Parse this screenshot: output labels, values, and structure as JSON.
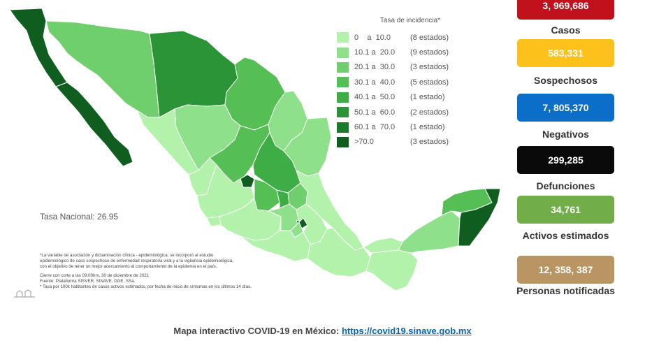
{
  "legend": {
    "title": "Tasa de incidencia*",
    "rows": [
      {
        "range": "0    a  10.0",
        "count": "(8 estados)",
        "color": "#b2f2ab"
      },
      {
        "range": "10.1 a  20.0",
        "count": "(9 estados)",
        "color": "#8fe08a"
      },
      {
        "range": "20.1 a  30.0",
        "count": "(3 estados)",
        "color": "#6fcf6d"
      },
      {
        "range": "30.1 a  40.0",
        "count": "(5 estados)",
        "color": "#55bf56"
      },
      {
        "range": "40.1 a  50.0",
        "count": "(1 estado)",
        "color": "#3fad45"
      },
      {
        "range": "50.1 a  60.0",
        "count": "(2 estados)",
        "color": "#2b9436"
      },
      {
        "range": "60.1 a  70.0",
        "count": "(1 estado)",
        "color": "#1a7a2a"
      },
      {
        "range": ">70.0",
        "count": "(3 estados)",
        "color": "#0f5e1f"
      }
    ]
  },
  "tasa_nacional": "Tasa Nacional: 26.95",
  "footnotes": {
    "lines": [
      "*La variable de asociación y dictaminación clínica - epidemiológica, se incorporó al estudio",
      "epidemiológico de caso sospechoso de enfermedad respiratoria viral y a la vigilancia epidemiológica,",
      "con el objetivo de tener un mejor acercamiento al comportamiento de la epidemia en el país."
    ],
    "cierre": [
      "Cierre con corte a las 09:00hrs, 30 de diciembre de 2021",
      "Fuente: Plataforma SISVER, SINAVE, DGE, SSa.",
      "* Tasa por 100k habitantes de casos activos estimados, por fecha de inicio de síntomas en los últimos 14 días."
    ]
  },
  "stats": [
    {
      "value": "3, 969,686",
      "label": "Casos",
      "color": "#c0111c",
      "text_color": "#ffffff"
    },
    {
      "value": "583,331",
      "label": "Sospechosos",
      "color": "#fcc21b",
      "text_color": "#ffffff"
    },
    {
      "value": "7, 805,370",
      "label": "Negativos",
      "color": "#0b6fc9",
      "text_color": "#ffffff"
    },
    {
      "value": "299,285",
      "label": "Defunciones",
      "color": "#0a0a0a",
      "text_color": "#ffffff"
    },
    {
      "value": "34,761",
      "label": "Activos estimados",
      "color": "#72ae48",
      "text_color": "#ffffff"
    },
    {
      "value": "12, 358, 387",
      "label": "Personas notificadas",
      "color": "#b99563",
      "text_color": "#ffffff"
    }
  ],
  "bottom": {
    "text": "Mapa interactivo COVID-19 en México: ",
    "link": "https://covid19.sinave.gob.mx"
  },
  "map": {
    "colors": {
      "light": "#b2f2ab",
      "l2": "#8fe08a",
      "l3": "#6fcf6d",
      "l4": "#55bf56",
      "l5": "#3fad45",
      "l6": "#2b9436",
      "l7": "#1a7a2a",
      "l8": "#0f5e1f"
    }
  }
}
